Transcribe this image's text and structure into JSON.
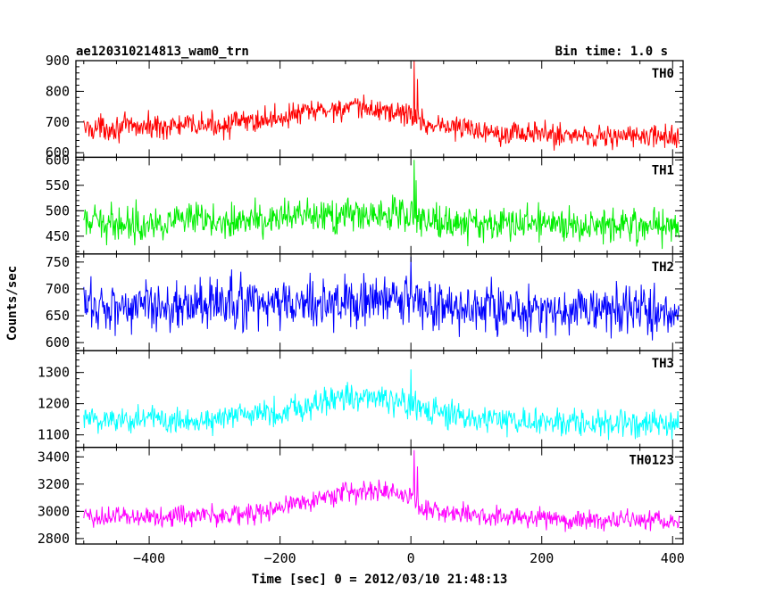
{
  "header": {
    "title": "ae120310214813_wam0_trn",
    "bin_time": "Bin time: 1.0 s"
  },
  "axes": {
    "ylabel": "Counts/sec",
    "xlabel": "Time [sec] 0 = 2012/03/10 21:48:13"
  },
  "chart_data": {
    "type": "line",
    "x_range": [
      -512,
      416
    ],
    "x_ticks": [
      -400,
      -200,
      0,
      200,
      400
    ],
    "x_tick_labels": [
      "−400",
      "−200",
      "0",
      "200",
      "400"
    ],
    "panels": [
      {
        "name": "TH0",
        "color": "#ff0000",
        "ylim": [
          585,
          900
        ],
        "ticks": [
          600,
          700,
          800,
          900
        ],
        "baseline": [
          [
            -500,
            680
          ],
          [
            -400,
            685
          ],
          [
            -300,
            690
          ],
          [
            -250,
            700
          ],
          [
            -200,
            715
          ],
          [
            -150,
            735
          ],
          [
            -100,
            745
          ],
          [
            -50,
            740
          ],
          [
            0,
            725
          ],
          [
            20,
            695
          ],
          [
            100,
            675
          ],
          [
            200,
            660
          ],
          [
            300,
            655
          ],
          [
            410,
            650
          ]
        ],
        "noise": 28,
        "spikes": [
          [
            5,
            900
          ],
          [
            10,
            840
          ]
        ]
      },
      {
        "name": "TH1",
        "color": "#00ee00",
        "ylim": [
          415,
          605
        ],
        "ticks": [
          450,
          500,
          550,
          600
        ],
        "baseline": [
          [
            -500,
            475
          ],
          [
            -300,
            480
          ],
          [
            -200,
            485
          ],
          [
            -100,
            490
          ],
          [
            0,
            495
          ],
          [
            20,
            480
          ],
          [
            100,
            475
          ],
          [
            200,
            475
          ],
          [
            410,
            472
          ]
        ],
        "noise": 24,
        "spikes": [
          [
            5,
            600
          ],
          [
            8,
            560
          ]
        ]
      },
      {
        "name": "TH2",
        "color": "#0000ff",
        "ylim": [
          585,
          765
        ],
        "ticks": [
          600,
          650,
          700,
          750
        ],
        "tick_labels": [
          "600",
          "650",
          "700",
          "750"
        ],
        "baseline": [
          [
            -500,
            668
          ],
          [
            -200,
            672
          ],
          [
            -100,
            675
          ],
          [
            0,
            680
          ],
          [
            40,
            665
          ],
          [
            200,
            660
          ],
          [
            410,
            660
          ]
        ],
        "noise": 34,
        "spikes": [
          [
            0,
            760
          ]
        ]
      },
      {
        "name": "TH3",
        "color": "#00ffff",
        "ylim": [
          1060,
          1370
        ],
        "ticks": [
          1100,
          1200,
          1300
        ],
        "baseline": [
          [
            -500,
            1150
          ],
          [
            -300,
            1150
          ],
          [
            -200,
            1175
          ],
          [
            -100,
            1225
          ],
          [
            -50,
            1215
          ],
          [
            0,
            1195
          ],
          [
            50,
            1160
          ],
          [
            200,
            1140
          ],
          [
            410,
            1130
          ]
        ],
        "noise": 32,
        "spikes": [
          [
            0,
            1310
          ]
        ]
      },
      {
        "name": "TH0123",
        "color": "#ff00ff",
        "ylim": [
          2760,
          3470
        ],
        "ticks": [
          2800,
          3000,
          3200,
          3400
        ],
        "baseline": [
          [
            -500,
            2960
          ],
          [
            -300,
            2970
          ],
          [
            -220,
            2990
          ],
          [
            -180,
            3060
          ],
          [
            -100,
            3140
          ],
          [
            -50,
            3150
          ],
          [
            0,
            3120
          ],
          [
            20,
            3010
          ],
          [
            100,
            2970
          ],
          [
            200,
            2950
          ],
          [
            410,
            2920
          ]
        ],
        "noise": 55,
        "spikes": [
          [
            5,
            3450
          ],
          [
            10,
            3330
          ]
        ]
      }
    ]
  }
}
